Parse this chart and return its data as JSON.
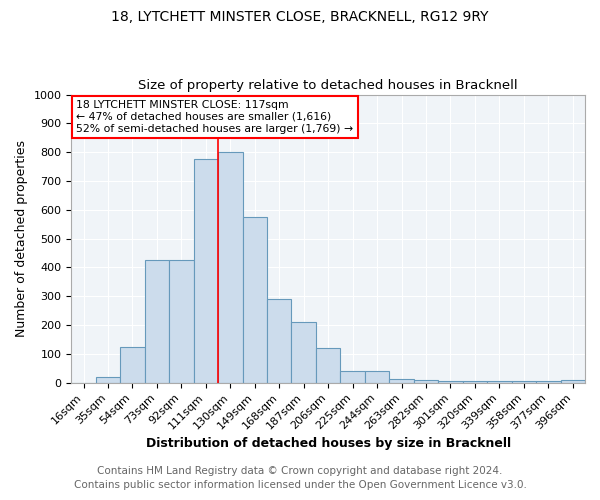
{
  "title1": "18, LYTCHETT MINSTER CLOSE, BRACKNELL, RG12 9RY",
  "title2": "Size of property relative to detached houses in Bracknell",
  "xlabel": "Distribution of detached houses by size in Bracknell",
  "ylabel": "Number of detached properties",
  "footer1": "Contains HM Land Registry data © Crown copyright and database right 2024.",
  "footer2": "Contains public sector information licensed under the Open Government Licence v3.0.",
  "bar_color": "#ccdcec",
  "bar_edge_color": "#6699bb",
  "categories": [
    "16sqm",
    "35sqm",
    "54sqm",
    "73sqm",
    "92sqm",
    "111sqm",
    "130sqm",
    "149sqm",
    "168sqm",
    "187sqm",
    "206sqm",
    "225sqm",
    "244sqm",
    "263sqm",
    "282sqm",
    "301sqm",
    "320sqm",
    "339sqm",
    "358sqm",
    "377sqm",
    "396sqm"
  ],
  "values": [
    0,
    20,
    125,
    425,
    425,
    775,
    800,
    575,
    290,
    210,
    120,
    40,
    40,
    12,
    10,
    5,
    5,
    5,
    5,
    5,
    8
  ],
  "ylim": [
    0,
    1000
  ],
  "yticks": [
    0,
    100,
    200,
    300,
    400,
    500,
    600,
    700,
    800,
    900,
    1000
  ],
  "red_line_x": 5.5,
  "annotation_text": "18 LYTCHETT MINSTER CLOSE: 117sqm\n← 47% of detached houses are smaller (1,616)\n52% of semi-detached houses are larger (1,769) →",
  "annotation_box_color": "white",
  "annotation_border_color": "red",
  "bg_color": "#f0f4f8",
  "plot_bg_color": "#e8eef4",
  "grid_color": "white",
  "title1_fontsize": 10,
  "title2_fontsize": 9.5,
  "xlabel_fontsize": 9,
  "ylabel_fontsize": 9,
  "tick_fontsize": 8,
  "footer_fontsize": 7.5
}
